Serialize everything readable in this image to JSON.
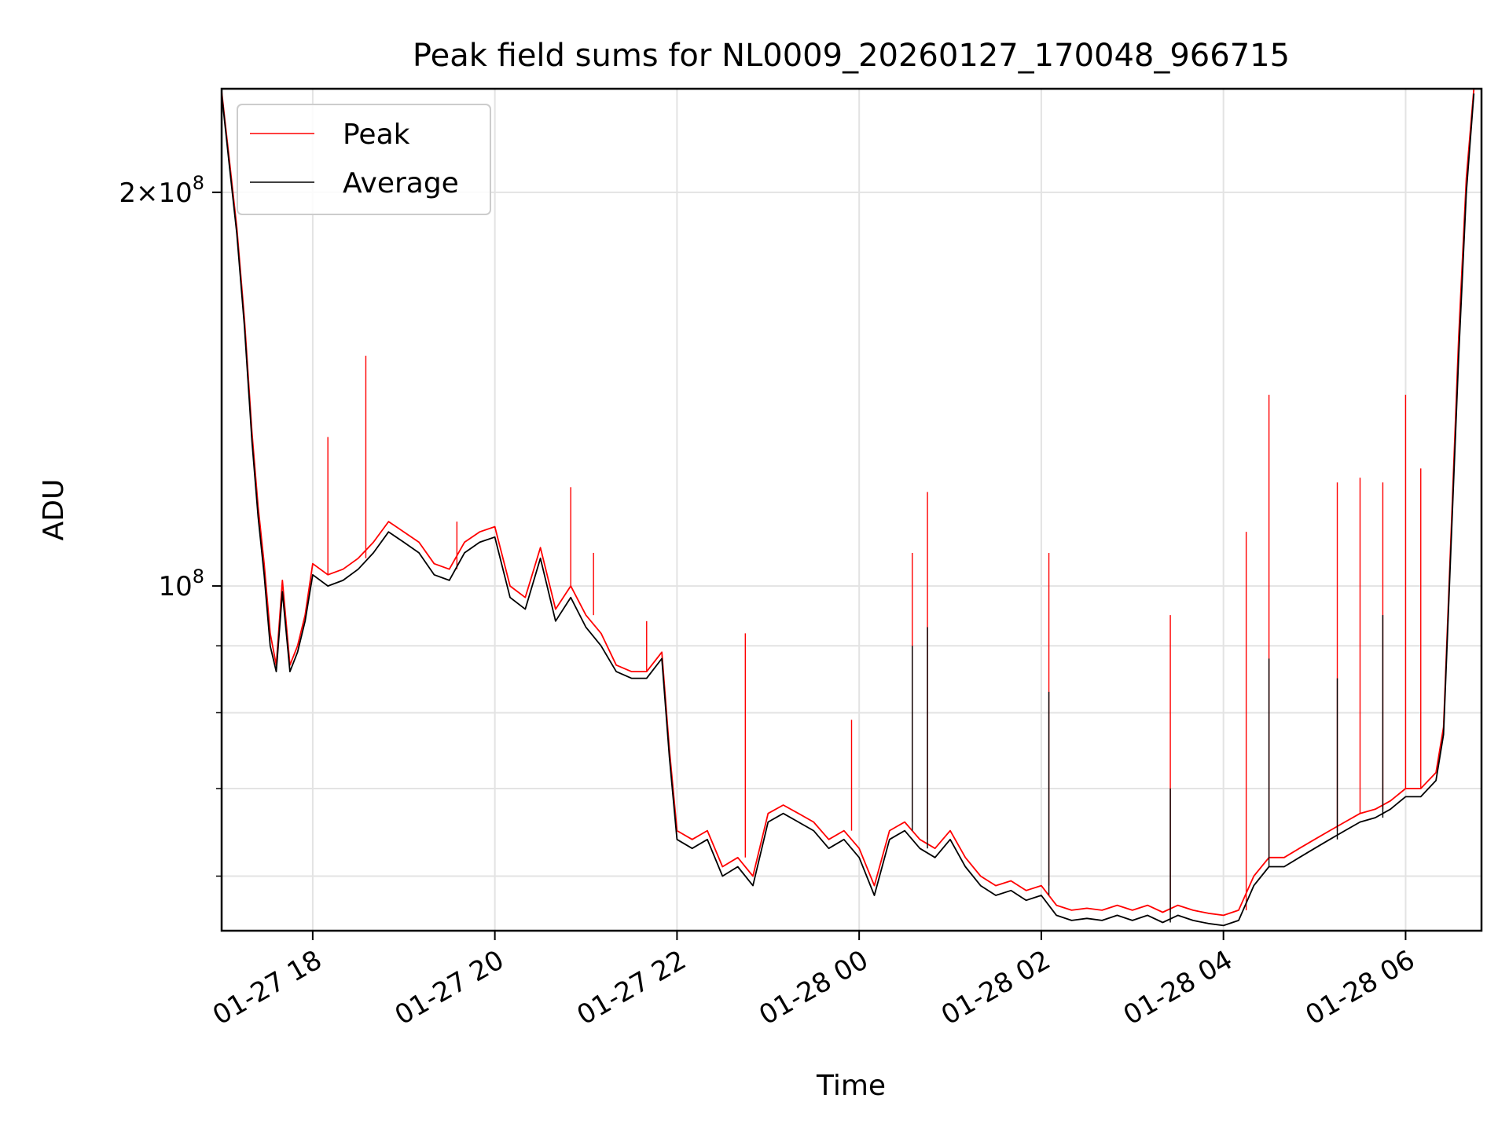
{
  "chart_data": {
    "type": "line",
    "title": "Peak field sums for NL0009_20260127_170048_966715",
    "xlabel": "Time",
    "ylabel": "ADU",
    "y_scale": "log",
    "ylim": [
      54500000,
      240000000
    ],
    "xlim": [
      "2026-01-27 17:00",
      "2026-01-28 06:50"
    ],
    "grid": true,
    "legend_position": "upper left",
    "x_ticks": [
      {
        "value": "2026-01-27 18:00",
        "label": "01-27 18"
      },
      {
        "value": "2026-01-27 20:00",
        "label": "01-27 20"
      },
      {
        "value": "2026-01-27 22:00",
        "label": "01-27 22"
      },
      {
        "value": "2026-01-28 00:00",
        "label": "01-28 00"
      },
      {
        "value": "2026-01-28 02:00",
        "label": "01-28 02"
      },
      {
        "value": "2026-01-28 04:00",
        "label": "01-28 04"
      },
      {
        "value": "2026-01-28 06:00",
        "label": "01-28 06"
      }
    ],
    "y_major_ticks": [
      {
        "value": 100000000,
        "base": "10",
        "exp": "8",
        "mant": ""
      },
      {
        "value": 200000000,
        "base": "10",
        "exp": "8",
        "mant": "2"
      }
    ],
    "y_minor_ticks": [
      60000000,
      70000000,
      80000000,
      90000000
    ],
    "series": [
      {
        "name": "Peak",
        "color": "#ff0000",
        "x": [
          "2026-01-27 17:00",
          "2026-01-27 17:05",
          "2026-01-27 17:10",
          "2026-01-27 17:15",
          "2026-01-27 17:20",
          "2026-01-27 17:24",
          "2026-01-27 17:28",
          "2026-01-27 17:32",
          "2026-01-27 17:36",
          "2026-01-27 17:40",
          "2026-01-27 17:45",
          "2026-01-27 17:50",
          "2026-01-27 17:55",
          "2026-01-27 18:00",
          "2026-01-27 18:10",
          "2026-01-27 18:20",
          "2026-01-27 18:30",
          "2026-01-27 18:40",
          "2026-01-27 18:50",
          "2026-01-27 19:00",
          "2026-01-27 19:10",
          "2026-01-27 19:20",
          "2026-01-27 19:30",
          "2026-01-27 19:40",
          "2026-01-27 19:50",
          "2026-01-27 20:00",
          "2026-01-27 20:10",
          "2026-01-27 20:20",
          "2026-01-27 20:30",
          "2026-01-27 20:40",
          "2026-01-27 20:50",
          "2026-01-27 21:00",
          "2026-01-27 21:10",
          "2026-01-27 21:20",
          "2026-01-27 21:30",
          "2026-01-27 21:40",
          "2026-01-27 21:50",
          "2026-01-27 21:55",
          "2026-01-27 22:00",
          "2026-01-27 22:10",
          "2026-01-27 22:20",
          "2026-01-27 22:30",
          "2026-01-27 22:40",
          "2026-01-27 22:50",
          "2026-01-27 23:00",
          "2026-01-27 23:10",
          "2026-01-27 23:20",
          "2026-01-27 23:30",
          "2026-01-27 23:40",
          "2026-01-27 23:50",
          "2026-01-28 00:00",
          "2026-01-28 00:10",
          "2026-01-28 00:20",
          "2026-01-28 00:30",
          "2026-01-28 00:40",
          "2026-01-28 00:50",
          "2026-01-28 01:00",
          "2026-01-28 01:10",
          "2026-01-28 01:20",
          "2026-01-28 01:30",
          "2026-01-28 01:40",
          "2026-01-28 01:50",
          "2026-01-28 02:00",
          "2026-01-28 02:10",
          "2026-01-28 02:20",
          "2026-01-28 02:30",
          "2026-01-28 02:40",
          "2026-01-28 02:50",
          "2026-01-28 03:00",
          "2026-01-28 03:10",
          "2026-01-28 03:20",
          "2026-01-28 03:30",
          "2026-01-28 03:40",
          "2026-01-28 03:50",
          "2026-01-28 04:00",
          "2026-01-28 04:10",
          "2026-01-28 04:20",
          "2026-01-28 04:30",
          "2026-01-28 04:40",
          "2026-01-28 04:50",
          "2026-01-28 05:00",
          "2026-01-28 05:10",
          "2026-01-28 05:20",
          "2026-01-28 05:30",
          "2026-01-28 05:40",
          "2026-01-28 05:50",
          "2026-01-28 06:00",
          "2026-01-28 06:10",
          "2026-01-28 06:20",
          "2026-01-28 06:25",
          "2026-01-28 06:30",
          "2026-01-28 06:35",
          "2026-01-28 06:40",
          "2026-01-28 06:45"
        ],
        "values": [
          239000000,
          212000000,
          188000000,
          160000000,
          131000000,
          115000000,
          104000000,
          92000000,
          87000000,
          101000000,
          87000000,
          90000000,
          95000000,
          104000000,
          102000000,
          103000000,
          105000000,
          108000000,
          112000000,
          110000000,
          108000000,
          104000000,
          103000000,
          108000000,
          110000000,
          111000000,
          100000000,
          98000000,
          107000000,
          96000000,
          100000000,
          95000000,
          92000000,
          87000000,
          86000000,
          86000000,
          89000000,
          75000000,
          65000000,
          64000000,
          65000000,
          61000000,
          62000000,
          60000000,
          67000000,
          68000000,
          67000000,
          66000000,
          64000000,
          65000000,
          63000000,
          59000000,
          65000000,
          66000000,
          64000000,
          63000000,
          65000000,
          62000000,
          60000000,
          59000000,
          59500000,
          58500000,
          59000000,
          57000000,
          56500000,
          56700000,
          56500000,
          57000000,
          56500000,
          57000000,
          56300000,
          57000000,
          56500000,
          56200000,
          56000000,
          56500000,
          60000000,
          62000000,
          62000000,
          63000000,
          64000000,
          65000000,
          66000000,
          67000000,
          67500000,
          68500000,
          70000000,
          70000000,
          72000000,
          78000000,
          110000000,
          155000000,
          205000000,
          240000000
        ],
        "spikes": [
          {
            "x": "2026-01-27 18:10",
            "value": 130000000
          },
          {
            "x": "2026-01-27 18:35",
            "value": 150000000
          },
          {
            "x": "2026-01-27 19:35",
            "value": 112000000
          },
          {
            "x": "2026-01-27 20:50",
            "value": 119000000
          },
          {
            "x": "2026-01-27 21:05",
            "value": 106000000
          },
          {
            "x": "2026-01-27 21:40",
            "value": 94000000
          },
          {
            "x": "2026-01-27 22:45",
            "value": 92000000
          },
          {
            "x": "2026-01-27 23:55",
            "value": 79000000
          },
          {
            "x": "2026-01-28 00:35",
            "value": 106000000
          },
          {
            "x": "2026-01-28 00:45",
            "value": 118000000
          },
          {
            "x": "2026-01-28 02:05",
            "value": 106000000
          },
          {
            "x": "2026-01-28 03:25",
            "value": 95000000
          },
          {
            "x": "2026-01-28 04:15",
            "value": 110000000
          },
          {
            "x": "2026-01-28 04:30",
            "value": 140000000
          },
          {
            "x": "2026-01-28 05:15",
            "value": 120000000
          },
          {
            "x": "2026-01-28 05:30",
            "value": 121000000
          },
          {
            "x": "2026-01-28 05:45",
            "value": 120000000
          },
          {
            "x": "2026-01-28 06:00",
            "value": 140000000
          },
          {
            "x": "2026-01-28 06:10",
            "value": 123000000
          }
        ]
      },
      {
        "name": "Average",
        "color": "#000000",
        "x": [
          "2026-01-27 17:00",
          "2026-01-27 17:05",
          "2026-01-27 17:10",
          "2026-01-27 17:15",
          "2026-01-27 17:20",
          "2026-01-27 17:24",
          "2026-01-27 17:28",
          "2026-01-27 17:32",
          "2026-01-27 17:36",
          "2026-01-27 17:40",
          "2026-01-27 17:45",
          "2026-01-27 17:50",
          "2026-01-27 17:55",
          "2026-01-27 18:00",
          "2026-01-27 18:10",
          "2026-01-27 18:20",
          "2026-01-27 18:30",
          "2026-01-27 18:40",
          "2026-01-27 18:50",
          "2026-01-27 19:00",
          "2026-01-27 19:10",
          "2026-01-27 19:20",
          "2026-01-27 19:30",
          "2026-01-27 19:40",
          "2026-01-27 19:50",
          "2026-01-27 20:00",
          "2026-01-27 20:10",
          "2026-01-27 20:20",
          "2026-01-27 20:30",
          "2026-01-27 20:40",
          "2026-01-27 20:50",
          "2026-01-27 21:00",
          "2026-01-27 21:10",
          "2026-01-27 21:20",
          "2026-01-27 21:30",
          "2026-01-27 21:40",
          "2026-01-27 21:50",
          "2026-01-27 21:55",
          "2026-01-27 22:00",
          "2026-01-27 22:10",
          "2026-01-27 22:20",
          "2026-01-27 22:30",
          "2026-01-27 22:40",
          "2026-01-27 22:50",
          "2026-01-27 23:00",
          "2026-01-27 23:10",
          "2026-01-27 23:20",
          "2026-01-27 23:30",
          "2026-01-27 23:40",
          "2026-01-27 23:50",
          "2026-01-28 00:00",
          "2026-01-28 00:10",
          "2026-01-28 00:20",
          "2026-01-28 00:30",
          "2026-01-28 00:40",
          "2026-01-28 00:50",
          "2026-01-28 01:00",
          "2026-01-28 01:10",
          "2026-01-28 01:20",
          "2026-01-28 01:30",
          "2026-01-28 01:40",
          "2026-01-28 01:50",
          "2026-01-28 02:00",
          "2026-01-28 02:10",
          "2026-01-28 02:20",
          "2026-01-28 02:30",
          "2026-01-28 02:40",
          "2026-01-28 02:50",
          "2026-01-28 03:00",
          "2026-01-28 03:10",
          "2026-01-28 03:20",
          "2026-01-28 03:30",
          "2026-01-28 03:40",
          "2026-01-28 03:50",
          "2026-01-28 04:00",
          "2026-01-28 04:10",
          "2026-01-28 04:20",
          "2026-01-28 04:30",
          "2026-01-28 04:40",
          "2026-01-28 04:50",
          "2026-01-28 05:00",
          "2026-01-28 05:10",
          "2026-01-28 05:20",
          "2026-01-28 05:30",
          "2026-01-28 05:40",
          "2026-01-28 05:50",
          "2026-01-28 06:00",
          "2026-01-28 06:10",
          "2026-01-28 06:20",
          "2026-01-28 06:25",
          "2026-01-28 06:30",
          "2026-01-28 06:35",
          "2026-01-28 06:40",
          "2026-01-28 06:45"
        ],
        "values": [
          238000000,
          210000000,
          186000000,
          158000000,
          129000000,
          113000000,
          102000000,
          90000000,
          86000000,
          99000000,
          86000000,
          89000000,
          94000000,
          102000000,
          100000000,
          101000000,
          103000000,
          106000000,
          110000000,
          108000000,
          106000000,
          102000000,
          101000000,
          106000000,
          108000000,
          109000000,
          98000000,
          96000000,
          105000000,
          94000000,
          98000000,
          93000000,
          90000000,
          86000000,
          85000000,
          85000000,
          88000000,
          74000000,
          64000000,
          63000000,
          64000000,
          60000000,
          61000000,
          59000000,
          66000000,
          67000000,
          66000000,
          65000000,
          63000000,
          64000000,
          62000000,
          58000000,
          64000000,
          65000000,
          63000000,
          62000000,
          64000000,
          61000000,
          59000000,
          58000000,
          58500000,
          57500000,
          58000000,
          56000000,
          55500000,
          55700000,
          55500000,
          56000000,
          55500000,
          56000000,
          55300000,
          56000000,
          55500000,
          55200000,
          55000000,
          55500000,
          59000000,
          61000000,
          61000000,
          62000000,
          63000000,
          64000000,
          65000000,
          66000000,
          66500000,
          67500000,
          69000000,
          69000000,
          71000000,
          77000000,
          108000000,
          150000000,
          200000000,
          238000000
        ],
        "spikes": [
          {
            "x": "2026-01-28 00:35",
            "value": 90000000
          },
          {
            "x": "2026-01-28 00:45",
            "value": 93000000
          },
          {
            "x": "2026-01-28 02:05",
            "value": 83000000
          },
          {
            "x": "2026-01-28 03:25",
            "value": 70000000
          },
          {
            "x": "2026-01-28 04:30",
            "value": 88000000
          },
          {
            "x": "2026-01-28 05:15",
            "value": 85000000
          },
          {
            "x": "2026-01-28 05:45",
            "value": 95000000
          }
        ]
      }
    ]
  }
}
